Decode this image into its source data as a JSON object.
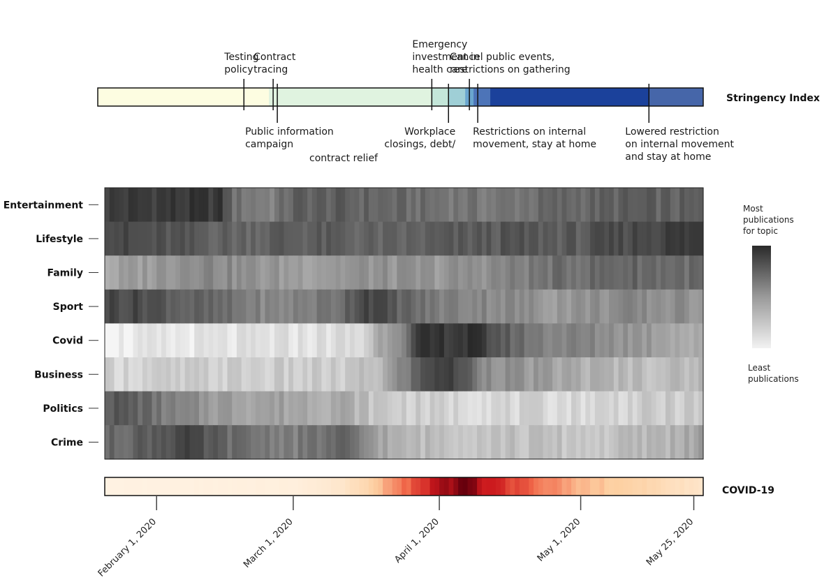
{
  "chart_data": {
    "type": "heatmap",
    "stringency": {
      "label": "Stringency Index",
      "segments": [
        {
          "start": "2020-01-04",
          "end": "2020-02-14",
          "level": 1,
          "color": "#fdfde1"
        },
        {
          "start": "2020-02-14",
          "end": "2020-03-24",
          "level": 2,
          "color": "#e0f3e0"
        },
        {
          "start": "2020-03-24",
          "end": "2020-03-28",
          "level": 3,
          "color": "#c4e6d9"
        },
        {
          "start": "2020-03-28",
          "end": "2020-04-01",
          "level": 4,
          "color": "#9fcfd6"
        },
        {
          "start": "2020-04-01",
          "end": "2020-04-03",
          "level": 5,
          "color": "#6aa6cf"
        },
        {
          "start": "2020-04-03",
          "end": "2020-04-07",
          "level": 6,
          "color": "#4d74b8"
        },
        {
          "start": "2020-04-07",
          "end": "2020-05-15",
          "level": 7,
          "color": "#1b419b"
        },
        {
          "start": "2020-05-15",
          "end": "2020-05-28",
          "level": 6,
          "color": "#4666a9"
        }
      ],
      "events": [
        {
          "date": "2020-02-08",
          "side": "above",
          "lines": [
            "Testing",
            "policy"
          ]
        },
        {
          "date": "2020-02-15",
          "side": "above",
          "lines": [
            "Contract",
            "tracing"
          ]
        },
        {
          "date": "2020-02-16",
          "side": "below",
          "lines": [
            "Public information",
            "campaign"
          ]
        },
        {
          "date": "2020-03-24",
          "side": "above",
          "lines": [
            "Emergency",
            "investment in",
            "health care"
          ]
        },
        {
          "date": "2020-03-28",
          "side": "below",
          "lines": [
            "Workplace",
            "closings, debt/",
            "contract relief"
          ]
        },
        {
          "date": "2020-04-02",
          "side": "above",
          "lines": [
            "Cancel public events,",
            "restrictions on gathering"
          ]
        },
        {
          "date": "2020-04-04",
          "side": "below",
          "lines": [
            "Restrictions on internal",
            "movement, stay at home"
          ]
        },
        {
          "date": "2020-05-15",
          "side": "below",
          "lines": [
            "Lowered restriction",
            "on internal movement",
            "and stay at home"
          ]
        }
      ]
    },
    "start_date": "2020-01-21",
    "end_date": "2020-05-27",
    "topics": [
      {
        "name": "Entertainment",
        "anchors": [
          [
            0,
            0.86
          ],
          [
            10,
            0.88
          ],
          [
            24,
            0.88
          ],
          [
            27,
            0.62
          ],
          [
            35,
            0.55
          ],
          [
            40,
            0.7
          ],
          [
            50,
            0.7
          ],
          [
            60,
            0.66
          ],
          [
            70,
            0.62
          ],
          [
            82,
            0.58
          ],
          [
            95,
            0.66
          ],
          [
            110,
            0.7
          ],
          [
            127,
            0.68
          ]
        ]
      },
      {
        "name": "Lifestyle",
        "anchors": [
          [
            0,
            0.86
          ],
          [
            5,
            0.78
          ],
          [
            15,
            0.74
          ],
          [
            28,
            0.68
          ],
          [
            37,
            0.72
          ],
          [
            50,
            0.7
          ],
          [
            60,
            0.66
          ],
          [
            70,
            0.7
          ],
          [
            85,
            0.74
          ],
          [
            100,
            0.72
          ],
          [
            110,
            0.8
          ],
          [
            120,
            0.86
          ],
          [
            127,
            0.88
          ]
        ]
      },
      {
        "name": "Family",
        "anchors": [
          [
            0,
            0.36
          ],
          [
            10,
            0.44
          ],
          [
            20,
            0.54
          ],
          [
            30,
            0.46
          ],
          [
            40,
            0.42
          ],
          [
            55,
            0.46
          ],
          [
            70,
            0.44
          ],
          [
            82,
            0.5
          ],
          [
            95,
            0.62
          ],
          [
            110,
            0.68
          ],
          [
            127,
            0.64
          ]
        ]
      },
      {
        "name": "Sport",
        "anchors": [
          [
            0,
            0.82
          ],
          [
            8,
            0.8
          ],
          [
            18,
            0.68
          ],
          [
            25,
            0.62
          ],
          [
            35,
            0.5
          ],
          [
            48,
            0.6
          ],
          [
            55,
            0.86
          ],
          [
            62,
            0.7
          ],
          [
            70,
            0.56
          ],
          [
            82,
            0.52
          ],
          [
            95,
            0.44
          ],
          [
            110,
            0.5
          ],
          [
            127,
            0.46
          ]
        ]
      },
      {
        "name": "Covid",
        "anchors": [
          [
            0,
            0.04
          ],
          [
            20,
            0.06
          ],
          [
            35,
            0.08
          ],
          [
            54,
            0.12
          ],
          [
            58,
            0.38
          ],
          [
            64,
            0.62
          ],
          [
            66,
            0.86
          ],
          [
            72,
            0.9
          ],
          [
            78,
            0.9
          ],
          [
            84,
            0.72
          ],
          [
            92,
            0.56
          ],
          [
            105,
            0.5
          ],
          [
            118,
            0.42
          ],
          [
            127,
            0.3
          ]
        ]
      },
      {
        "name": "Business",
        "anchors": [
          [
            0,
            0.16
          ],
          [
            25,
            0.18
          ],
          [
            50,
            0.18
          ],
          [
            58,
            0.28
          ],
          [
            64,
            0.6
          ],
          [
            70,
            0.88
          ],
          [
            75,
            0.78
          ],
          [
            80,
            0.52
          ],
          [
            90,
            0.42
          ],
          [
            105,
            0.3
          ],
          [
            120,
            0.26
          ],
          [
            127,
            0.3
          ]
        ]
      },
      {
        "name": "Politics",
        "anchors": [
          [
            0,
            0.74
          ],
          [
            6,
            0.7
          ],
          [
            15,
            0.5
          ],
          [
            25,
            0.42
          ],
          [
            40,
            0.38
          ],
          [
            50,
            0.36
          ],
          [
            57,
            0.22
          ],
          [
            70,
            0.16
          ],
          [
            85,
            0.14
          ],
          [
            100,
            0.14
          ],
          [
            115,
            0.18
          ],
          [
            127,
            0.2
          ]
        ]
      },
      {
        "name": "Crime",
        "anchors": [
          [
            0,
            0.64
          ],
          [
            8,
            0.72
          ],
          [
            16,
            0.82
          ],
          [
            28,
            0.62
          ],
          [
            40,
            0.56
          ],
          [
            50,
            0.66
          ],
          [
            56,
            0.46
          ],
          [
            62,
            0.28
          ],
          [
            75,
            0.26
          ],
          [
            90,
            0.24
          ],
          [
            105,
            0.22
          ],
          [
            120,
            0.32
          ],
          [
            127,
            0.4
          ]
        ]
      }
    ],
    "covid": {
      "label": "COVID-19",
      "anchors": [
        [
          0,
          0.02
        ],
        [
          40,
          0.04
        ],
        [
          50,
          0.1
        ],
        [
          56,
          0.22
        ],
        [
          62,
          0.45
        ],
        [
          68,
          0.68
        ],
        [
          71,
          0.85
        ],
        [
          76,
          0.95
        ],
        [
          80,
          0.8
        ],
        [
          86,
          0.62
        ],
        [
          92,
          0.48
        ],
        [
          100,
          0.32
        ],
        [
          112,
          0.22
        ],
        [
          122,
          0.14
        ],
        [
          127,
          0.1
        ]
      ]
    },
    "ticks": [
      {
        "date": "2020-02-01",
        "label": "February 1, 2020"
      },
      {
        "date": "2020-03-01",
        "label": "March 1, 2020"
      },
      {
        "date": "2020-04-01",
        "label": "April 1, 2020"
      },
      {
        "date": "2020-05-01",
        "label": "May 1, 2020"
      },
      {
        "date": "2020-05-25",
        "label": "May 25, 2020"
      }
    ],
    "legend": {
      "most": [
        "Most",
        "publications",
        "for topic"
      ],
      "least": [
        "Least",
        "publications"
      ]
    }
  }
}
